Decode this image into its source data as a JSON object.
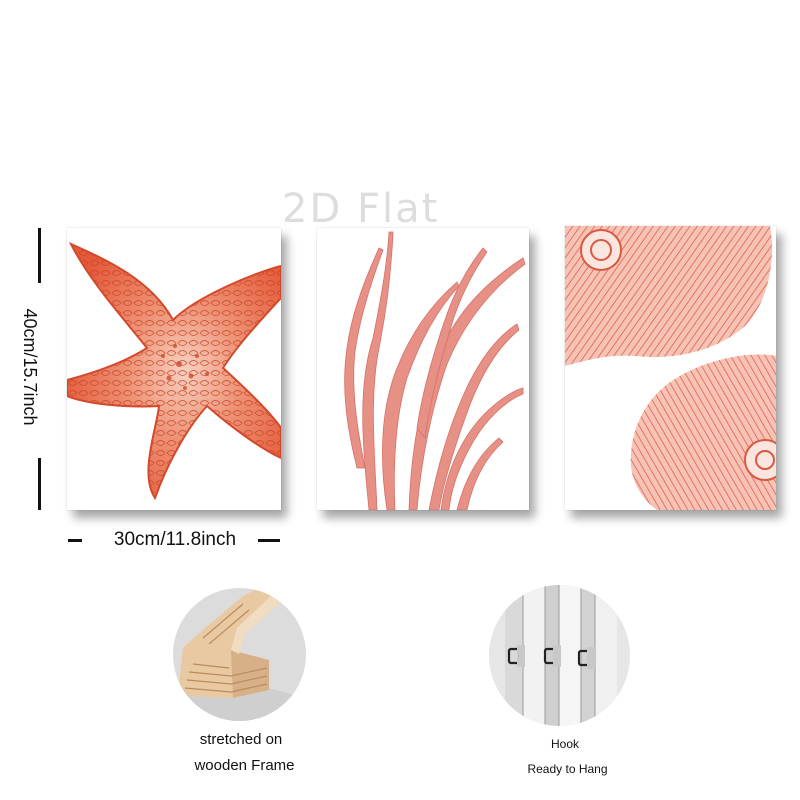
{
  "watermark": "2D Flat",
  "dimensions": {
    "height_label": "40cm/15.7inch",
    "width_label": "30cm/11.8inch"
  },
  "features": {
    "frame_caption_line1": "stretched on",
    "frame_caption_line2": "wooden Frame",
    "hook_caption_line1": "Hook",
    "hook_caption_line2": "Ready to Hang"
  },
  "colors": {
    "coral": "#e8694a",
    "coral_dark": "#d2492c",
    "seaweed": "#e58b80"
  },
  "panels": [
    "starfish",
    "seaweed",
    "sea-coral"
  ]
}
